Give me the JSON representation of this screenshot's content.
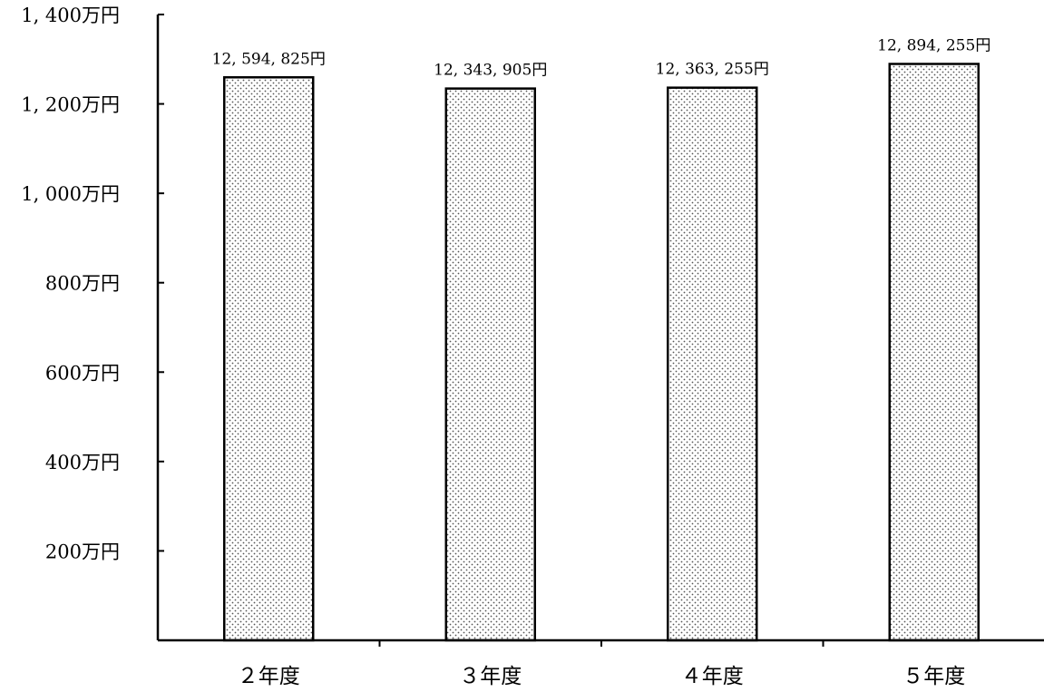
{
  "chart_data": {
    "type": "bar",
    "title": "",
    "xlabel": "",
    "ylabel": "",
    "categories": [
      "２年度",
      "３年度",
      "４年度",
      "５年度"
    ],
    "values": [
      12594825,
      12343905,
      12363255,
      12894255
    ],
    "data_labels": [
      "12, 594, 825円",
      "12, 343, 905円",
      "12, 363, 255円",
      "12, 894, 255円"
    ],
    "ylim": [
      0,
      14000000
    ],
    "yticks": [
      2000000,
      4000000,
      6000000,
      8000000,
      10000000,
      12000000,
      14000000
    ],
    "ytick_labels": [
      "200万円",
      "400万円",
      "600万円",
      "800万円",
      "1, 000万円",
      "1, 200万円",
      "1, 400万円"
    ],
    "grid": false,
    "legend": "none",
    "bar_pattern": "dotted",
    "colors": {
      "bar_fill": "#ffffff",
      "bar_dots": "#555555",
      "axis": "#000000"
    }
  }
}
